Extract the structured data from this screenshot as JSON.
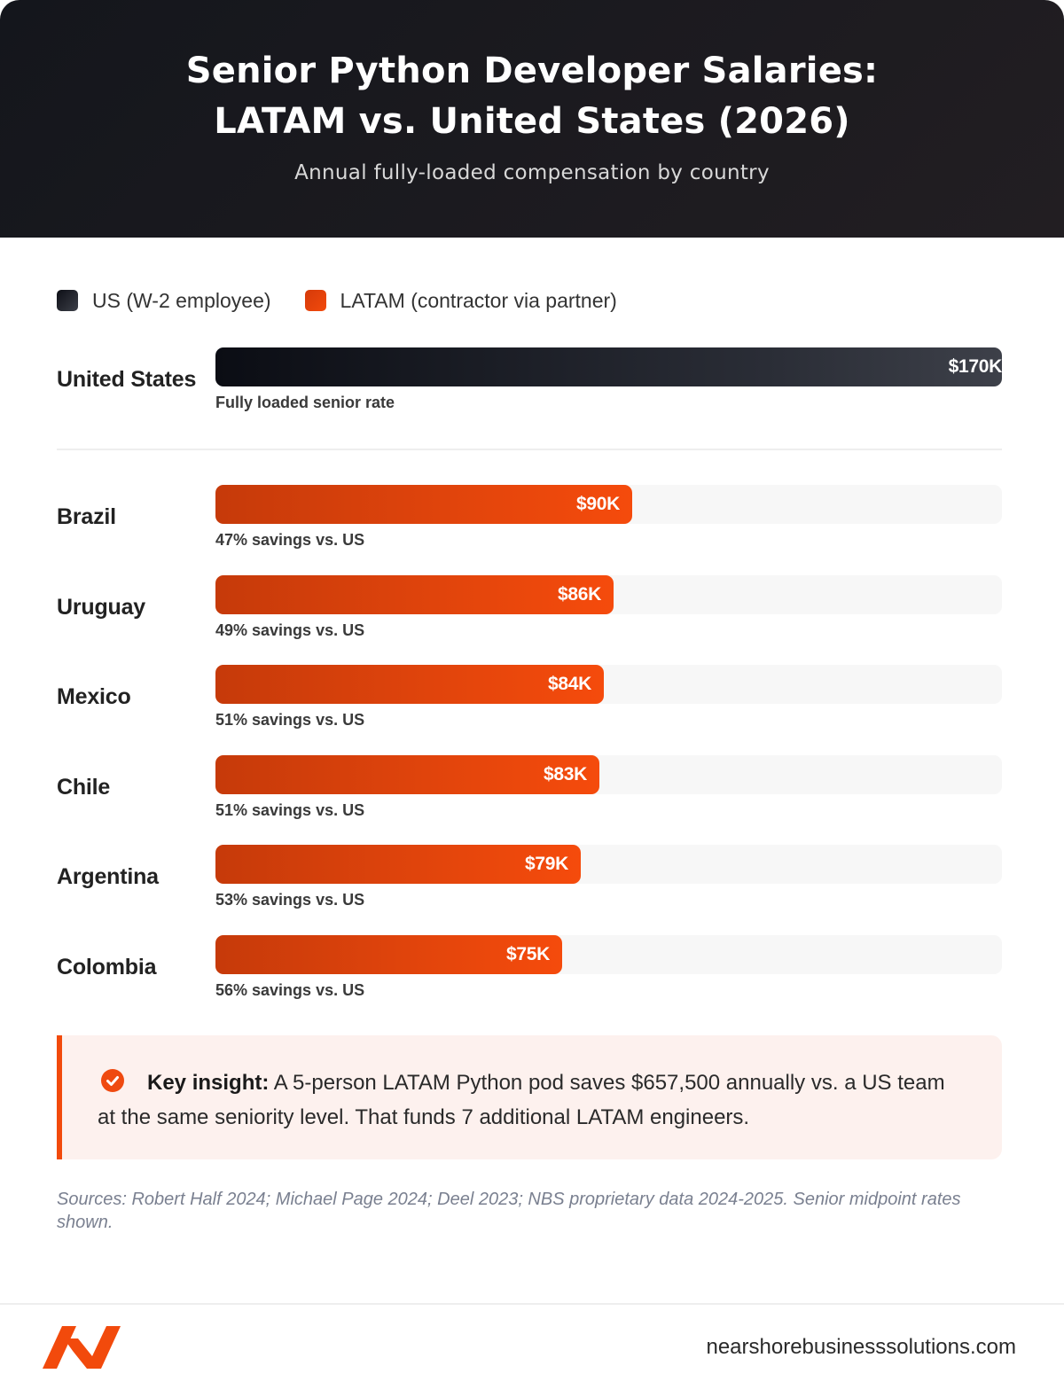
{
  "header": {
    "title_line1": "Senior Python Developer Salaries:",
    "title_line2": "LATAM vs. United States (2026)",
    "subtitle": "Annual fully-loaded compensation by country"
  },
  "legend": {
    "us": "US (W-2 employee)",
    "latam": "LATAM (contractor via partner)"
  },
  "colors": {
    "us_bar": "#1b1d24",
    "latam_bar": "#f24a0c",
    "accent": "#f24a0c"
  },
  "chart_data": {
    "type": "bar",
    "orientation": "horizontal",
    "unit": "USD thousands",
    "xlim": [
      0,
      170
    ],
    "grid": false,
    "legend_placement": "top-left",
    "rows": [
      {
        "country": "United States",
        "value": 170,
        "label": "$170K",
        "note": "Fully loaded senior rate",
        "group": "us"
      },
      {
        "country": "Brazil",
        "value": 90,
        "label": "$90K",
        "note": "47% savings vs. US",
        "group": "latam"
      },
      {
        "country": "Uruguay",
        "value": 86,
        "label": "$86K",
        "note": "49% savings vs. US",
        "group": "latam"
      },
      {
        "country": "Mexico",
        "value": 84,
        "label": "$84K",
        "note": "51% savings vs. US",
        "group": "latam"
      },
      {
        "country": "Chile",
        "value": 83,
        "label": "$83K",
        "note": "51% savings vs. US",
        "group": "latam"
      },
      {
        "country": "Argentina",
        "value": 79,
        "label": "$79K",
        "note": "53% savings vs. US",
        "group": "latam"
      },
      {
        "country": "Colombia",
        "value": 75,
        "label": "$75K",
        "note": "56% savings vs. US",
        "group": "latam"
      }
    ]
  },
  "insight": {
    "icon": "check-circle-icon",
    "lead": "Key insight:",
    "text": " A 5-person LATAM Python pod saves $657,500 annually vs. a US team at the same seniority level. That funds 7 additional LATAM engineers."
  },
  "sources": "Sources: Robert Half 2024; Michael Page 2024; Deel 2023; NBS proprietary data 2024-2025. Senior midpoint rates shown.",
  "footer": {
    "logo": "nbs-logo",
    "website": "nearshorebusinesssolutions.com"
  }
}
